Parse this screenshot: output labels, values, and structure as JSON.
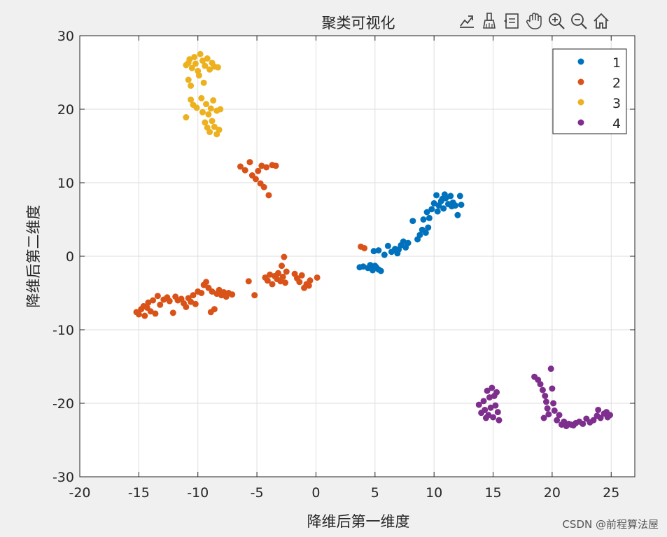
{
  "toolbar": {
    "icons": [
      "export-icon",
      "brush-icon",
      "datatip-icon",
      "pan-icon",
      "zoom-in-icon",
      "zoom-out-icon",
      "home-icon"
    ]
  },
  "watermark": "CSDN @前程算法屋",
  "colors": {
    "s1": "#0072BD",
    "s2": "#D95319",
    "s3": "#EDB120",
    "s4": "#7E2F8E"
  },
  "chart_data": {
    "type": "scatter",
    "title": "聚类可视化",
    "xlabel": "降维后第一维度",
    "ylabel": "降维后第二维度",
    "xlim": [
      -20,
      27
    ],
    "ylim": [
      -30,
      30
    ],
    "xticks": [
      "-20",
      "-15",
      "-10",
      "-5",
      "0",
      "5",
      "10",
      "15",
      "20",
      "25"
    ],
    "xtick_values": [
      -20,
      -15,
      -10,
      -5,
      0,
      5,
      10,
      15,
      20,
      25
    ],
    "yticks": [
      "30",
      "20",
      "10",
      "0",
      "-10",
      "-20",
      "-30"
    ],
    "ytick_values": [
      30,
      20,
      10,
      0,
      -10,
      -20,
      -30
    ],
    "grid": true,
    "legend": "top-right",
    "series": [
      {
        "name": "1",
        "points": [
          [
            3.7,
            -1.5
          ],
          [
            4.0,
            -1.4
          ],
          [
            4.4,
            -1.6
          ],
          [
            4.6,
            -1.2
          ],
          [
            4.8,
            -1.9
          ],
          [
            5.1,
            -1.5
          ],
          [
            5.3,
            -1.8
          ],
          [
            5.5,
            -2.0
          ],
          [
            5.0,
            -1.3
          ],
          [
            4.9,
            0.7
          ],
          [
            5.3,
            0.8
          ],
          [
            5.8,
            0.2
          ],
          [
            6.1,
            1.4
          ],
          [
            6.4,
            0.6
          ],
          [
            6.7,
            1.0
          ],
          [
            6.9,
            0.4
          ],
          [
            7.2,
            1.5
          ],
          [
            7.4,
            2.0
          ],
          [
            7.6,
            1.2
          ],
          [
            7.8,
            1.8
          ],
          [
            7.0,
            0.9
          ],
          [
            8.2,
            4.8
          ],
          [
            8.6,
            2.3
          ],
          [
            8.8,
            2.9
          ],
          [
            9.0,
            3.6
          ],
          [
            9.1,
            5.0
          ],
          [
            9.3,
            3.2
          ],
          [
            9.4,
            6.0
          ],
          [
            9.6,
            5.2
          ],
          [
            9.8,
            6.4
          ],
          [
            10.0,
            7.2
          ],
          [
            10.2,
            8.3
          ],
          [
            10.4,
            6.9
          ],
          [
            10.6,
            7.5
          ],
          [
            10.8,
            6.5
          ],
          [
            11.0,
            7.9
          ],
          [
            11.2,
            7.1
          ],
          [
            11.4,
            8.2
          ],
          [
            11.6,
            7.3
          ],
          [
            11.8,
            6.9
          ],
          [
            12.0,
            5.6
          ],
          [
            12.2,
            8.2
          ],
          [
            10.9,
            8.4
          ],
          [
            11.5,
            6.8
          ],
          [
            10.3,
            6.1
          ],
          [
            9.5,
            3.9
          ],
          [
            12.3,
            7.0
          ],
          [
            10.7,
            7.8
          ]
        ]
      },
      {
        "name": "2",
        "points": [
          [
            -15.2,
            -7.6
          ],
          [
            -15.0,
            -7.9
          ],
          [
            -14.8,
            -7.2
          ],
          [
            -14.6,
            -6.8
          ],
          [
            -14.5,
            -8.1
          ],
          [
            -14.3,
            -7.0
          ],
          [
            -14.2,
            -6.3
          ],
          [
            -14.0,
            -7.5
          ],
          [
            -13.8,
            -6.0
          ],
          [
            -13.6,
            -7.8
          ],
          [
            -13.4,
            -5.4
          ],
          [
            -13.2,
            -6.6
          ],
          [
            -12.9,
            -5.9
          ],
          [
            -12.6,
            -5.6
          ],
          [
            -12.4,
            -6.1
          ],
          [
            -12.1,
            -7.7
          ],
          [
            -11.9,
            -5.5
          ],
          [
            -11.7,
            -6.0
          ],
          [
            -11.4,
            -5.8
          ],
          [
            -11.2,
            -6.4
          ],
          [
            -11.0,
            -6.9
          ],
          [
            -10.8,
            -5.7
          ],
          [
            -10.6,
            -6.2
          ],
          [
            -10.4,
            -5.3
          ],
          [
            -10.2,
            -6.5
          ],
          [
            -10.0,
            -4.8
          ],
          [
            -9.7,
            -5.0
          ],
          [
            -9.5,
            -3.9
          ],
          [
            -9.3,
            -3.5
          ],
          [
            -9.1,
            -4.3
          ],
          [
            -8.9,
            -7.6
          ],
          [
            -8.8,
            -4.8
          ],
          [
            -8.6,
            -7.2
          ],
          [
            -8.4,
            -5.1
          ],
          [
            -8.2,
            -4.6
          ],
          [
            -8.0,
            -5.3
          ],
          [
            -7.8,
            -4.9
          ],
          [
            -7.6,
            -5.5
          ],
          [
            -7.4,
            -5.0
          ],
          [
            -7.1,
            -5.2
          ],
          [
            -5.7,
            -3.4
          ],
          [
            -5.2,
            -5.3
          ],
          [
            -4.3,
            -2.9
          ],
          [
            -4.1,
            -3.3
          ],
          [
            -3.9,
            -2.5
          ],
          [
            -3.7,
            -3.8
          ],
          [
            -3.5,
            -2.7
          ],
          [
            -3.3,
            -3.1
          ],
          [
            -3.2,
            -2.3
          ],
          [
            -3.0,
            -3.4
          ],
          [
            -2.9,
            -1.3
          ],
          [
            -2.8,
            -2.8
          ],
          [
            -2.7,
            -0.1
          ],
          [
            -2.6,
            -3.6
          ],
          [
            -2.5,
            -2.1
          ],
          [
            -1.8,
            -2.4
          ],
          [
            -1.6,
            -3.0
          ],
          [
            -1.4,
            -3.5
          ],
          [
            -1.2,
            -2.6
          ],
          [
            -1.0,
            -4.3
          ],
          [
            -0.8,
            -3.8
          ],
          [
            -0.6,
            -4.0
          ],
          [
            -0.5,
            -3.3
          ],
          [
            0.1,
            -2.9
          ],
          [
            -6.4,
            12.2
          ],
          [
            -6.0,
            11.7
          ],
          [
            -5.6,
            12.8
          ],
          [
            -5.4,
            11.0
          ],
          [
            -5.1,
            10.5
          ],
          [
            -4.9,
            11.6
          ],
          [
            -4.7,
            9.9
          ],
          [
            -4.6,
            12.3
          ],
          [
            -4.4,
            9.4
          ],
          [
            -4.2,
            12.1
          ],
          [
            -3.7,
            12.4
          ],
          [
            -3.4,
            12.3
          ],
          [
            -4.0,
            8.3
          ],
          [
            3.8,
            1.3
          ],
          [
            4.1,
            1.1
          ]
        ]
      },
      {
        "name": "3",
        "points": [
          [
            -11.0,
            26.0
          ],
          [
            -10.7,
            26.8
          ],
          [
            -10.5,
            25.6
          ],
          [
            -10.3,
            27.1
          ],
          [
            -10.2,
            26.2
          ],
          [
            -10.0,
            25.2
          ],
          [
            -9.8,
            27.5
          ],
          [
            -9.6,
            26.6
          ],
          [
            -9.4,
            25.9
          ],
          [
            -9.2,
            26.9
          ],
          [
            -9.0,
            25.4
          ],
          [
            -8.8,
            26.3
          ],
          [
            -8.6,
            25.8
          ],
          [
            -8.3,
            25.7
          ],
          [
            -10.8,
            24.0
          ],
          [
            -10.6,
            23.2
          ],
          [
            -9.9,
            24.6
          ],
          [
            -9.5,
            23.6
          ],
          [
            -10.6,
            21.3
          ],
          [
            -10.4,
            20.6
          ],
          [
            -10.1,
            20.2
          ],
          [
            -9.7,
            21.5
          ],
          [
            -9.3,
            20.7
          ],
          [
            -9.1,
            19.3
          ],
          [
            -8.9,
            20.1
          ],
          [
            -8.7,
            21.2
          ],
          [
            -8.4,
            19.8
          ],
          [
            -9.6,
            19.6
          ],
          [
            -9.4,
            18.2
          ],
          [
            -9.2,
            17.5
          ],
          [
            -9.0,
            16.9
          ],
          [
            -8.8,
            18.4
          ],
          [
            -8.6,
            17.6
          ],
          [
            -8.4,
            16.6
          ],
          [
            -8.2,
            17.2
          ],
          [
            -11.0,
            18.9
          ],
          [
            -8.1,
            20.0
          ],
          [
            -10.8,
            26.3
          ]
        ]
      },
      {
        "name": "4",
        "points": [
          [
            13.8,
            -20.2
          ],
          [
            14.0,
            -21.3
          ],
          [
            14.2,
            -19.7
          ],
          [
            14.3,
            -20.9
          ],
          [
            14.5,
            -18.3
          ],
          [
            14.6,
            -21.6
          ],
          [
            14.7,
            -19.2
          ],
          [
            14.8,
            -20.6
          ],
          [
            14.9,
            -17.9
          ],
          [
            15.0,
            -21.9
          ],
          [
            15.1,
            -19.0
          ],
          [
            15.2,
            -20.3
          ],
          [
            15.3,
            -18.5
          ],
          [
            15.4,
            -21.2
          ],
          [
            14.4,
            -22.0
          ],
          [
            15.5,
            -22.3
          ],
          [
            18.5,
            -16.4
          ],
          [
            18.8,
            -16.8
          ],
          [
            19.0,
            -17.4
          ],
          [
            19.2,
            -18.2
          ],
          [
            19.4,
            -19.0
          ],
          [
            19.5,
            -19.8
          ],
          [
            19.6,
            -20.7
          ],
          [
            19.7,
            -21.5
          ],
          [
            19.9,
            -15.3
          ],
          [
            20.0,
            -18.0
          ],
          [
            20.1,
            -20.0
          ],
          [
            20.2,
            -21.0
          ],
          [
            20.4,
            -22.3
          ],
          [
            20.6,
            -21.6
          ],
          [
            20.8,
            -22.9
          ],
          [
            21.0,
            -22.5
          ],
          [
            21.2,
            -23.1
          ],
          [
            21.4,
            -22.8
          ],
          [
            21.6,
            -22.9
          ],
          [
            21.8,
            -23.0
          ],
          [
            22.0,
            -22.7
          ],
          [
            22.3,
            -22.5
          ],
          [
            22.6,
            -22.8
          ],
          [
            22.9,
            -22.1
          ],
          [
            23.2,
            -22.6
          ],
          [
            23.5,
            -22.3
          ],
          [
            23.8,
            -21.7
          ],
          [
            24.1,
            -22.0
          ],
          [
            24.4,
            -21.4
          ],
          [
            24.7,
            -21.9
          ],
          [
            24.9,
            -21.6
          ],
          [
            19.3,
            -22.0
          ],
          [
            23.9,
            -20.9
          ],
          [
            24.6,
            -21.2
          ]
        ]
      }
    ]
  }
}
